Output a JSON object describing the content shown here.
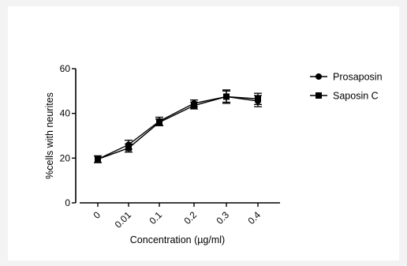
{
  "chart_data": {
    "type": "line",
    "categories": [
      "0",
      "0.01",
      "0.1",
      "0.2",
      "0.3",
      "0.4"
    ],
    "xlabel": "Concentration (µg/ml)",
    "ylabel": "%cells with neurites",
    "ylim": [
      0,
      60
    ],
    "yticks": [
      "0",
      "20",
      "40",
      "60"
    ],
    "grid": false,
    "legend_position": "top-right",
    "series": [
      {
        "name": "Prosaposin",
        "marker": "circle",
        "values": [
          19.5,
          26.0,
          36.5,
          44.5,
          47.5,
          45.5
        ],
        "errors": [
          1.5,
          2.0,
          1.8,
          1.5,
          3.0,
          2.5
        ]
      },
      {
        "name": "Saposin C",
        "marker": "square",
        "values": [
          19.5,
          24.5,
          36.0,
          43.5,
          47.5,
          46.5
        ],
        "errors": [
          1.5,
          1.8,
          1.5,
          1.5,
          2.5,
          2.5
        ]
      }
    ],
    "colors": {
      "line": "#000000",
      "background": "#ffffff"
    }
  }
}
